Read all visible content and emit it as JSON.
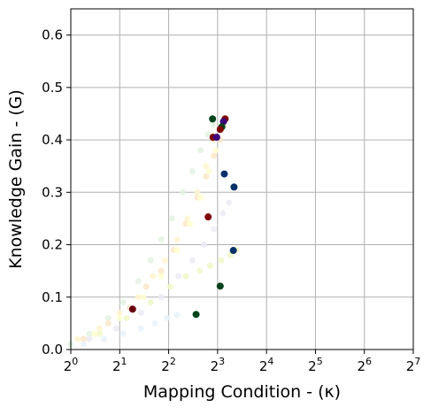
{
  "chart_data": {
    "type": "scatter",
    "title": "",
    "xlabel": "Mapping Condition - (κ)",
    "ylabel": "Knowledge Gain - (G)",
    "x_scale": "log2",
    "xlim": [
      1,
      128
    ],
    "ylim": [
      0,
      0.65
    ],
    "x_ticks": [
      {
        "value": 1,
        "base": "2",
        "exp": "0"
      },
      {
        "value": 2,
        "base": "2",
        "exp": "1"
      },
      {
        "value": 4,
        "base": "2",
        "exp": "2"
      },
      {
        "value": 8,
        "base": "2",
        "exp": "3"
      },
      {
        "value": 16,
        "base": "2",
        "exp": "4"
      },
      {
        "value": 32,
        "base": "2",
        "exp": "5"
      },
      {
        "value": 64,
        "base": "2",
        "exp": "6"
      },
      {
        "value": 128,
        "base": "2",
        "exp": "7"
      }
    ],
    "y_ticks": [
      {
        "value": 0.0,
        "label": "0.0"
      },
      {
        "value": 0.1,
        "label": "0.1"
      },
      {
        "value": 0.2,
        "label": "0.2"
      },
      {
        "value": 0.3,
        "label": "0.3"
      },
      {
        "value": 0.4,
        "label": "0.4"
      },
      {
        "value": 0.5,
        "label": "0.5"
      },
      {
        "value": 0.6,
        "label": "0.6"
      }
    ],
    "grid": true,
    "legend": "none",
    "series": [
      {
        "color": "#e3f2e3",
        "points": [
          [
            1.0,
            0.01
          ],
          [
            1.3,
            0.03
          ],
          [
            1.7,
            0.06
          ],
          [
            2.1,
            0.09
          ],
          [
            2.6,
            0.13
          ],
          [
            3.1,
            0.17
          ],
          [
            3.6,
            0.21
          ],
          [
            4.2,
            0.25
          ],
          [
            4.9,
            0.3
          ],
          [
            5.6,
            0.34
          ],
          [
            6.3,
            0.38
          ],
          [
            7.0,
            0.41
          ],
          [
            7.5,
            0.43
          ]
        ]
      },
      {
        "color": "#fff4cf",
        "points": [
          [
            1.1,
            0.02
          ],
          [
            1.5,
            0.04
          ],
          [
            2.0,
            0.07
          ],
          [
            2.6,
            0.1
          ],
          [
            3.2,
            0.14
          ],
          [
            3.8,
            0.17
          ],
          [
            4.5,
            0.21
          ],
          [
            5.2,
            0.25
          ],
          [
            6.0,
            0.3
          ],
          [
            6.8,
            0.35
          ],
          [
            7.6,
            0.4
          ],
          [
            8.3,
            0.42
          ],
          [
            8.8,
            0.43
          ]
        ]
      },
      {
        "color": "#fde6c8",
        "points": [
          [
            1.2,
            0.02
          ],
          [
            1.7,
            0.05
          ],
          [
            2.3,
            0.08
          ],
          [
            2.9,
            0.12
          ],
          [
            3.6,
            0.15
          ],
          [
            4.3,
            0.19
          ],
          [
            5.1,
            0.24
          ],
          [
            6.0,
            0.29
          ],
          [
            6.8,
            0.33
          ],
          [
            7.6,
            0.37
          ],
          [
            8.3,
            0.4
          ]
        ]
      },
      {
        "color": "#ecebf5",
        "points": [
          [
            1.3,
            0.02
          ],
          [
            1.9,
            0.04
          ],
          [
            2.7,
            0.07
          ],
          [
            3.6,
            0.1
          ],
          [
            4.6,
            0.14
          ],
          [
            5.6,
            0.17
          ],
          [
            6.6,
            0.2
          ],
          [
            7.6,
            0.23
          ],
          [
            8.6,
            0.26
          ],
          [
            9.4,
            0.28
          ]
        ]
      },
      {
        "color": "#eef8c8",
        "points": [
          [
            1.5,
            0.03
          ],
          [
            2.2,
            0.06
          ],
          [
            3.1,
            0.09
          ],
          [
            4.1,
            0.12
          ],
          [
            5.1,
            0.14
          ],
          [
            6.2,
            0.15
          ],
          [
            7.2,
            0.16
          ],
          [
            8.4,
            0.17
          ],
          [
            9.6,
            0.18
          ],
          [
            10.4,
            0.19
          ]
        ]
      },
      {
        "color": "#e8f2fa",
        "points": [
          [
            1.2,
            0.01
          ],
          [
            1.6,
            0.02
          ],
          [
            2.1,
            0.03
          ],
          [
            2.7,
            0.04
          ],
          [
            3.3,
            0.05
          ],
          [
            3.9,
            0.06
          ],
          [
            4.5,
            0.066
          ]
        ]
      },
      {
        "color": "#ffffd0",
        "points": [
          [
            1.4,
            0.03
          ],
          [
            2.0,
            0.06
          ],
          [
            2.8,
            0.1
          ],
          [
            3.6,
            0.14
          ],
          [
            4.5,
            0.19
          ],
          [
            5.4,
            0.24
          ],
          [
            6.3,
            0.29
          ],
          [
            7.1,
            0.34
          ],
          [
            7.8,
            0.38
          ]
        ]
      }
    ],
    "endpoints": [
      {
        "x": 7.45,
        "y": 0.44,
        "color": "#00441b"
      },
      {
        "x": 8.9,
        "y": 0.44,
        "color": "#7f0000"
      },
      {
        "x": 8.7,
        "y": 0.435,
        "color": "#3f007d"
      },
      {
        "x": 8.5,
        "y": 0.425,
        "color": "#00441b"
      },
      {
        "x": 8.3,
        "y": 0.42,
        "color": "#7f0000"
      },
      {
        "x": 7.5,
        "y": 0.405,
        "color": "#7f0000"
      },
      {
        "x": 7.9,
        "y": 0.405,
        "color": "#3f007d"
      },
      {
        "x": 8.8,
        "y": 0.335,
        "color": "#08306b"
      },
      {
        "x": 10.1,
        "y": 0.31,
        "color": "#08306b"
      },
      {
        "x": 7.0,
        "y": 0.253,
        "color": "#7f0000"
      },
      {
        "x": 10.0,
        "y": 0.189,
        "color": "#08306b"
      },
      {
        "x": 8.3,
        "y": 0.121,
        "color": "#00441b"
      },
      {
        "x": 5.9,
        "y": 0.067,
        "color": "#00441b"
      },
      {
        "x": 2.4,
        "y": 0.077,
        "color": "#67000d"
      }
    ]
  }
}
